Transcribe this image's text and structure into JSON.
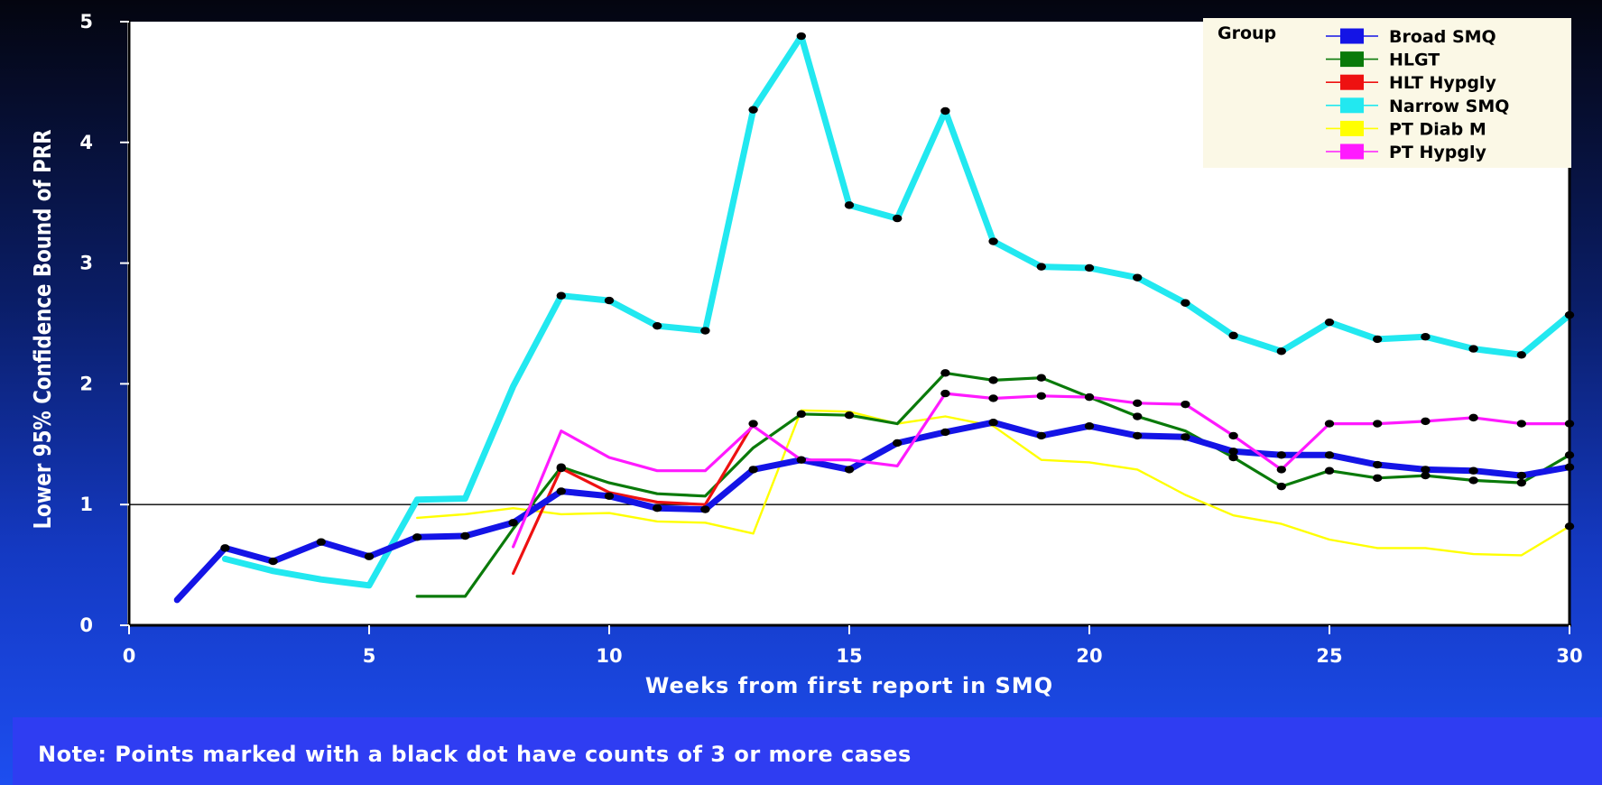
{
  "chart_data": {
    "type": "line",
    "title": "",
    "xlabel": "Weeks from first report in SMQ",
    "ylabel": "Lower 95% Confidence Bound of PRR",
    "xlim": [
      0,
      30
    ],
    "ylim": [
      0,
      5
    ],
    "xticks": [
      0,
      5,
      10,
      15,
      20,
      25,
      30
    ],
    "yticks": [
      0,
      1,
      2,
      3,
      4,
      5
    ],
    "reference_line": 1,
    "grid": false,
    "legend": {
      "title": "Group",
      "placement": "top-right"
    },
    "series": [
      {
        "name": "Narrow SMQ",
        "color": "#22e8f0",
        "width": "heavy",
        "points": [
          [
            2,
            0.55
          ],
          [
            3,
            0.45
          ],
          [
            4,
            0.38
          ],
          [
            5,
            0.33
          ],
          [
            6,
            1.04
          ],
          [
            7,
            1.05
          ],
          [
            8,
            1.98
          ],
          [
            9,
            2.73
          ],
          [
            10,
            2.69
          ],
          [
            11,
            2.48
          ],
          [
            12,
            2.44
          ],
          [
            13,
            4.27
          ],
          [
            14,
            4.88
          ],
          [
            15,
            3.48
          ],
          [
            16,
            3.37
          ],
          [
            17,
            4.26
          ],
          [
            18,
            3.18
          ],
          [
            19,
            2.97
          ],
          [
            20,
            2.96
          ],
          [
            21,
            2.88
          ],
          [
            22,
            2.67
          ],
          [
            23,
            2.4
          ],
          [
            24,
            2.27
          ],
          [
            25,
            2.51
          ],
          [
            26,
            2.37
          ],
          [
            27,
            2.39
          ],
          [
            28,
            2.29
          ],
          [
            29,
            2.24
          ],
          [
            30,
            2.57
          ]
        ],
        "dots": [
          9,
          10,
          11,
          12,
          13,
          14,
          15,
          16,
          17,
          18,
          19,
          20,
          21,
          22,
          23,
          24,
          25,
          26,
          27,
          28,
          29,
          30
        ]
      },
      {
        "name": "PT Diab M",
        "color": "#ffff00",
        "width": "thin",
        "points": [
          [
            6,
            0.89
          ],
          [
            7,
            0.92
          ],
          [
            8,
            0.97
          ],
          [
            9,
            0.92
          ],
          [
            10,
            0.93
          ],
          [
            11,
            0.86
          ],
          [
            12,
            0.85
          ],
          [
            13,
            0.76
          ],
          [
            14,
            1.78
          ],
          [
            15,
            1.77
          ],
          [
            16,
            1.67
          ],
          [
            17,
            1.73
          ],
          [
            18,
            1.65
          ],
          [
            19,
            1.37
          ],
          [
            20,
            1.35
          ],
          [
            21,
            1.29
          ],
          [
            22,
            1.08
          ],
          [
            23,
            0.91
          ],
          [
            24,
            0.84
          ],
          [
            25,
            0.71
          ],
          [
            26,
            0.64
          ],
          [
            27,
            0.64
          ],
          [
            28,
            0.59
          ],
          [
            29,
            0.58
          ],
          [
            30,
            0.82
          ]
        ],
        "dots": [
          30
        ]
      },
      {
        "name": "HLGT",
        "color": "#0a7a0a",
        "width": "medium",
        "points": [
          [
            6,
            0.24
          ],
          [
            7,
            0.24
          ],
          [
            8,
            0.8
          ],
          [
            9,
            1.31
          ],
          [
            10,
            1.18
          ],
          [
            11,
            1.09
          ],
          [
            12,
            1.07
          ],
          [
            13,
            1.47
          ],
          [
            14,
            1.75
          ],
          [
            15,
            1.74
          ],
          [
            16,
            1.67
          ],
          [
            17,
            2.09
          ],
          [
            18,
            2.03
          ],
          [
            19,
            2.05
          ],
          [
            20,
            1.89
          ],
          [
            21,
            1.73
          ],
          [
            22,
            1.61
          ],
          [
            23,
            1.39
          ],
          [
            24,
            1.15
          ],
          [
            25,
            1.28
          ],
          [
            26,
            1.22
          ],
          [
            27,
            1.24
          ],
          [
            28,
            1.2
          ],
          [
            29,
            1.18
          ],
          [
            30,
            1.41
          ]
        ],
        "dots": [
          9,
          14,
          15,
          17,
          18,
          19,
          21,
          23,
          24,
          25,
          26,
          27,
          28,
          29,
          30
        ]
      },
      {
        "name": "HLT Hypgly",
        "color": "#ee1111",
        "width": "medium",
        "points": [
          [
            8,
            0.43
          ],
          [
            9,
            1.3
          ],
          [
            10,
            1.1
          ],
          [
            11,
            1.02
          ],
          [
            12,
            1.0
          ],
          [
            13,
            1.67
          ]
        ],
        "dots": [
          9,
          13
        ]
      },
      {
        "name": "Broad SMQ",
        "color": "#1414e6",
        "width": "heavy",
        "points": [
          [
            1,
            0.21
          ],
          [
            2,
            0.64
          ],
          [
            3,
            0.53
          ],
          [
            4,
            0.69
          ],
          [
            5,
            0.57
          ],
          [
            6,
            0.73
          ],
          [
            7,
            0.74
          ],
          [
            8,
            0.85
          ],
          [
            9,
            1.11
          ],
          [
            10,
            1.07
          ],
          [
            11,
            0.97
          ],
          [
            12,
            0.96
          ],
          [
            13,
            1.29
          ],
          [
            14,
            1.37
          ],
          [
            15,
            1.29
          ],
          [
            16,
            1.51
          ],
          [
            17,
            1.6
          ],
          [
            18,
            1.68
          ],
          [
            19,
            1.57
          ],
          [
            20,
            1.65
          ],
          [
            21,
            1.57
          ],
          [
            22,
            1.56
          ],
          [
            23,
            1.44
          ],
          [
            24,
            1.41
          ],
          [
            25,
            1.41
          ],
          [
            26,
            1.33
          ],
          [
            27,
            1.29
          ],
          [
            28,
            1.28
          ],
          [
            29,
            1.24
          ],
          [
            30,
            1.31
          ]
        ],
        "dots": [
          2,
          3,
          4,
          5,
          6,
          7,
          8,
          9,
          10,
          11,
          12,
          13,
          14,
          15,
          16,
          17,
          18,
          19,
          20,
          21,
          22,
          23,
          24,
          25,
          26,
          27,
          28,
          29,
          30
        ]
      },
      {
        "name": "PT Hypgly",
        "color": "#ff1aff",
        "width": "medium",
        "points": [
          [
            8,
            0.65
          ],
          [
            9,
            1.61
          ],
          [
            10,
            1.39
          ],
          [
            11,
            1.28
          ],
          [
            12,
            1.28
          ],
          [
            13,
            1.65
          ],
          [
            14,
            1.37
          ],
          [
            15,
            1.37
          ],
          [
            16,
            1.32
          ],
          [
            17,
            1.92
          ],
          [
            18,
            1.88
          ],
          [
            19,
            1.9
          ],
          [
            20,
            1.89
          ],
          [
            21,
            1.84
          ],
          [
            22,
            1.83
          ],
          [
            23,
            1.57
          ],
          [
            24,
            1.29
          ],
          [
            25,
            1.67
          ],
          [
            26,
            1.67
          ],
          [
            27,
            1.69
          ],
          [
            28,
            1.72
          ],
          [
            29,
            1.67
          ],
          [
            30,
            1.67
          ]
        ],
        "dots": [
          17,
          18,
          19,
          20,
          21,
          22,
          23,
          24,
          25,
          26,
          27,
          28,
          29,
          30
        ]
      }
    ],
    "legend_order": [
      "Broad SMQ",
      "HLGT",
      "HLT Hypgly",
      "Narrow SMQ",
      "PT Diab M",
      "PT Hypgly"
    ]
  },
  "note": "Note: Points marked with a black dot have counts of 3 or more cases"
}
